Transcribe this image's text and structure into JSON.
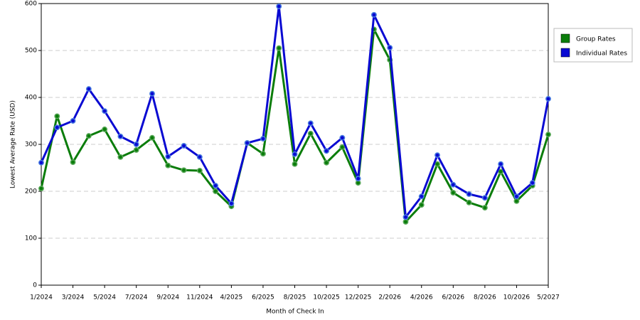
{
  "chart_data": {
    "type": "line",
    "x_label": "Month of Check In",
    "y_label": "Lowest Average Rate (USD)",
    "categories": [
      "1/2024",
      null,
      "3/2024",
      null,
      "5/2024",
      null,
      "7/2024",
      null,
      "9/2024",
      null,
      "11/2024",
      null,
      "4/2025",
      null,
      "6/2025",
      null,
      "8/2025",
      null,
      "10/2025",
      null,
      "12/2025",
      null,
      "2/2026",
      null,
      "4/2026",
      null,
      "6/2026",
      null,
      "8/2026",
      null,
      "10/2026",
      null,
      "5/2027"
    ],
    "series": [
      {
        "name": "Group Rates",
        "color": "#0b7d0b",
        "marker_color": "#5aa85a",
        "values": [
          206,
          360,
          262,
          318,
          332,
          273,
          288,
          314,
          255,
          245,
          244,
          200,
          168,
          303,
          280,
          505,
          258,
          323,
          261,
          294,
          218,
          545,
          480,
          135,
          171,
          258,
          197,
          176,
          165,
          242,
          179,
          212,
          321
        ]
      },
      {
        "name": "Individual Rates",
        "color": "#0a0ad2",
        "marker_color": "#4a7fe0",
        "values": [
          261,
          336,
          350,
          418,
          371,
          317,
          300,
          408,
          274,
          297,
          273,
          212,
          174,
          303,
          312,
          594,
          279,
          345,
          286,
          314,
          227,
          576,
          506,
          145,
          189,
          277,
          214,
          194,
          186,
          258,
          189,
          218,
          397
        ]
      }
    ],
    "ylim": [
      0,
      600
    ],
    "yticks": [
      0,
      100,
      200,
      300,
      400,
      500,
      600
    ],
    "grid": true,
    "legend": "right"
  }
}
